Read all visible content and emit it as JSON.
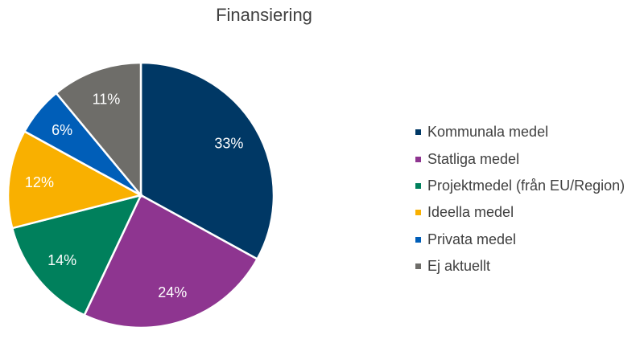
{
  "chart_data": {
    "type": "pie",
    "title": "Finansiering",
    "categories": [
      "Kommunala medel",
      "Statliga medel",
      "Projektmedel (från EU/Region)",
      "Ideella medel",
      "Privata medel",
      "Ej aktuellt"
    ],
    "values": [
      33,
      24,
      14,
      12,
      6,
      11
    ],
    "labels": [
      "33%",
      "24%",
      "14%",
      "12%",
      "6%",
      "11%"
    ],
    "colors": [
      "#003865",
      "#8E3590",
      "#00805C",
      "#F9B000",
      "#005EB8",
      "#6E6D69"
    ],
    "legend_position": "right"
  }
}
